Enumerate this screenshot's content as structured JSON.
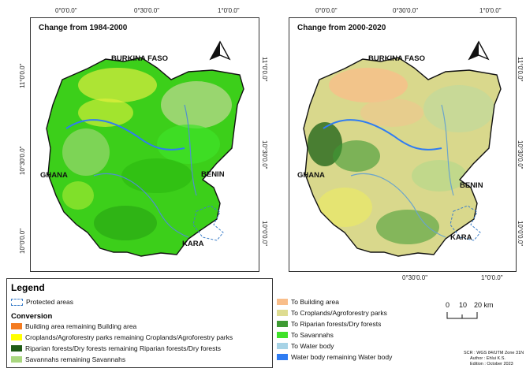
{
  "maps": [
    {
      "title": "Change from 1984-2000",
      "labels": {
        "burkina": "BURKINA FASO",
        "ghana": "GHANA",
        "benin": "BENIN",
        "kara": "KARA"
      },
      "top_ticks": [
        "0°0'0.0\"",
        "0°30'0.0\"",
        "1°0'0.0\""
      ],
      "left_ticks": [
        "11°0'0.0\"",
        "10°30'0.0\"",
        "10°0'0.0\""
      ],
      "right_ticks": [
        "11°0'0.0\"",
        "10°30'0.0\"",
        "10°0'0.0\""
      ],
      "base_color": "#3ccf1a"
    },
    {
      "title": "Change from 2000-2020",
      "labels": {
        "burkina": "BURKINA FASO",
        "ghana": "GHANA",
        "benin": "BENIN",
        "kara": "KARA"
      },
      "top_ticks": [
        "0°0'0.0\"",
        "0°30'0.0\"",
        "1°0'0.0\""
      ],
      "right_ticks": [
        "11°0'0.0\"",
        "10°30'0.0\"",
        "10°0'0.0\""
      ],
      "bottom_ticks": [
        "0°30'0.0\"",
        "1°0'0.0\""
      ],
      "base_color": "#d9d88c"
    }
  ],
  "legend": {
    "title": "Legend",
    "protected": "Protected areas",
    "conversion_title": "Conversion",
    "items_left": [
      {
        "label": "Building area remaining Building area",
        "color": "#f47b20"
      },
      {
        "label": "Croplands/Agroforestry parks remaining Croplands/Agroforestry parks",
        "color": "#ffff00"
      },
      {
        "label": "Riparian forests/Dry forests remaining Riparian forests/Dry forests",
        "color": "#1f5c16"
      },
      {
        "label": "Savannahs remaining Savannahs",
        "color": "#a9d77f"
      }
    ],
    "items_right": [
      {
        "label": "To Building area",
        "color": "#f9be8a"
      },
      {
        "label": "To Croplands/Agroforestry parks",
        "color": "#dedc91"
      },
      {
        "label": "To Riparian forests/Dry forests",
        "color": "#3e9a33"
      },
      {
        "label": "To Savannahs",
        "color": "#3fe22a"
      },
      {
        "label": "To Water body",
        "color": "#a7d3e6"
      },
      {
        "label": "Water body remaining Water body",
        "color": "#2f7cf2"
      }
    ]
  },
  "scale": {
    "labels": [
      "0",
      "10",
      "20 km"
    ]
  },
  "credits": {
    "line1": "SCR : WGS 84/UTM Zone 31N",
    "line2": "Author : Ehlui K.S.",
    "line3": "Edition : October 2023"
  }
}
